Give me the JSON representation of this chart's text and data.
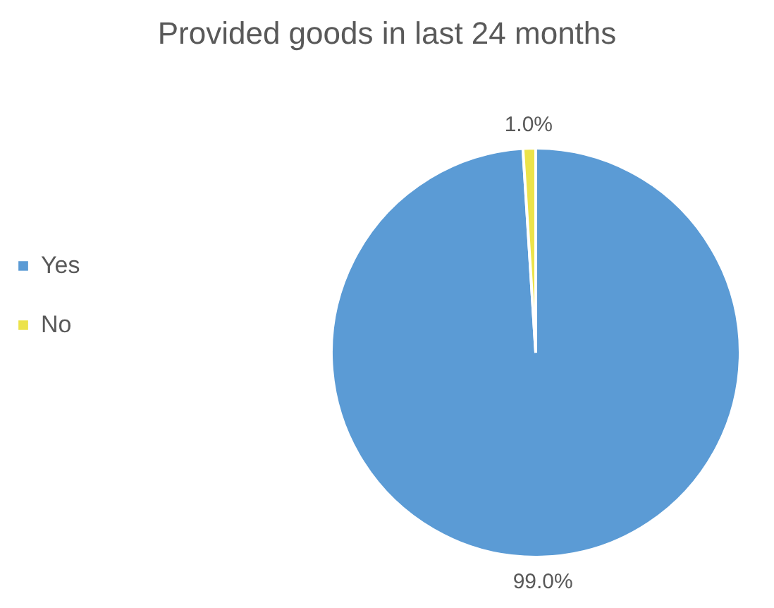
{
  "chart_data": {
    "type": "pie",
    "title": "Provided goods in last 24 months",
    "categories": [
      "Yes",
      "No"
    ],
    "values": [
      99.0,
      1.0
    ],
    "colors": [
      "#5b9bd5",
      "#ece34a"
    ],
    "value_labels": [
      "99.0%",
      "1.0%"
    ],
    "legend": "left"
  }
}
